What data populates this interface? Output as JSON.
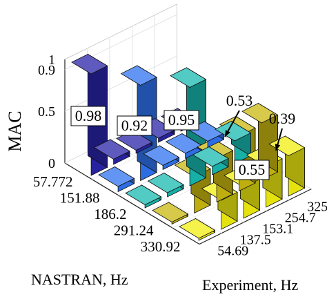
{
  "chart_data": {
    "type": "bar3d",
    "ylabel": "MAC",
    "xlabel": "NASTRAN, Hz",
    "zlabel": "Experiment, Hz",
    "nastran_ticks": [
      "57.772",
      "151.88",
      "186.2",
      "291.24",
      "330.92"
    ],
    "experiment_ticks": [
      "54.69",
      "137.5",
      "153.1",
      "254.7",
      "325"
    ],
    "z_ticks": [
      "0",
      "0.5",
      "0.9",
      "1"
    ],
    "zlim": [
      0,
      1
    ],
    "matrix": [
      [
        0.98,
        0.05,
        0.03,
        0.04,
        0.03
      ],
      [
        0.05,
        0.92,
        0.04,
        0.05,
        0.06
      ],
      [
        0.03,
        0.04,
        0.95,
        0.08,
        0.22
      ],
      [
        0.02,
        0.35,
        0.42,
        0.53,
        0.55
      ],
      [
        0.02,
        0.28,
        0.3,
        0.39,
        0.39
      ]
    ],
    "series_colors": [
      "#2a24a8",
      "#2f73f0",
      "#17b9b0",
      "#c9b80f",
      "#f2ee10"
    ],
    "labels": [
      {
        "text": "0.98",
        "row": 0,
        "col": 0,
        "arrow": false
      },
      {
        "text": "0.92",
        "row": 1,
        "col": 1,
        "arrow": false
      },
      {
        "text": "0.95",
        "row": 2,
        "col": 2,
        "arrow": false
      },
      {
        "text": "0.53",
        "row": 3,
        "col": 3,
        "arrow": true
      },
      {
        "text": "0.55",
        "row": 3,
        "col": 4,
        "arrow": false
      },
      {
        "text": "0.39",
        "row": 4,
        "col": 4,
        "arrow": true
      }
    ],
    "grid": true
  }
}
